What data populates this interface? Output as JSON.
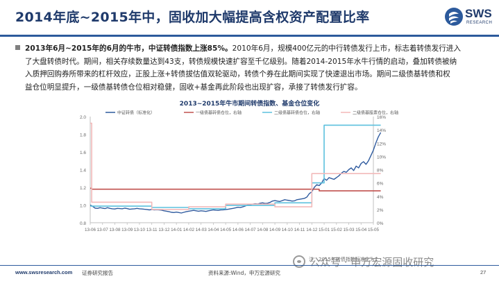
{
  "header": {
    "title": "2014年底~2015年中，固收加大幅提高含权资产配置比率",
    "logo_text": "SWS",
    "logo_sub": "RESEARCH"
  },
  "bullet": {
    "lines": [
      {
        "bold": "2013年6月~2015年的6月的牛市，中证转债指数上涨85%。",
        "text": "2010年6月，规模400亿元的中行转债发行上市，标志着转债发行进入"
      },
      {
        "bold": "",
        "text": "了大盘转债时代。期间，相关存续数量达到43支，转债规模快速扩容至千亿级别。随着2014-2015年水牛行情的启动，叠加转债被纳"
      },
      {
        "bold": "",
        "text": "入质押回购券所带来的杠杆效应，正股上涨+转债拔估值双轮驱动，转债个券在此期间实现了快速退出市场。期间二级债基转债和权"
      },
      {
        "bold": "",
        "text": "益仓位明显提升，一级债基转债仓位相对稳健，固收+基金再此阶段也出现扩容，承接了转债发行扩容。"
      }
    ]
  },
  "chart_data": {
    "type": "line",
    "title": "2013~2015年牛市期间转债指数、基金仓位变化",
    "x_ticks": [
      "13-06",
      "13-07",
      "13-08",
      "13-09",
      "13-10",
      "13-11",
      "13-12",
      "14-01",
      "14-02",
      "14-03",
      "14-04",
      "14-05",
      "14-06",
      "14-07",
      "14-08",
      "14-09",
      "14-10",
      "14-11",
      "14-12",
      "15-01",
      "15-02",
      "15-03",
      "15-04",
      "15-05"
    ],
    "left_axis": {
      "min": 0.8,
      "max": 2.0,
      "ticks": [
        "0.8",
        "1.0",
        "1.2",
        "1.4",
        "1.6",
        "1.8",
        "2.0"
      ]
    },
    "right_axis": {
      "min": 0,
      "max": 16,
      "ticks": [
        "0%",
        "2%",
        "4%",
        "6%",
        "8%",
        "10%",
        "12%",
        "14%",
        "16%"
      ]
    },
    "grid": false,
    "legend_position": "top",
    "series": [
      {
        "name": "中证转债（标准化）",
        "axis": "left",
        "color": "#2e5a9e",
        "points": [
          [
            0,
            1.0
          ],
          [
            0.2,
            0.985
          ],
          [
            0.4,
            0.965
          ],
          [
            0.6,
            0.962
          ],
          [
            0.8,
            0.97
          ],
          [
            1.0,
            0.965
          ],
          [
            1.2,
            0.96
          ],
          [
            1.4,
            0.97
          ],
          [
            1.6,
            0.962
          ],
          [
            1.8,
            0.958
          ],
          [
            2.0,
            0.955
          ],
          [
            2.2,
            0.962
          ],
          [
            2.4,
            0.96
          ],
          [
            2.6,
            0.958
          ],
          [
            2.8,
            0.965
          ],
          [
            3.0,
            0.96
          ],
          [
            3.2,
            0.952
          ],
          [
            3.4,
            0.955
          ],
          [
            3.6,
            0.958
          ],
          [
            3.8,
            0.962
          ],
          [
            4.0,
            0.958
          ],
          [
            4.2,
            0.955
          ],
          [
            4.4,
            0.952
          ],
          [
            4.6,
            0.95
          ],
          [
            4.8,
            0.945
          ],
          [
            5.0,
            0.948
          ],
          [
            5.2,
            0.944
          ],
          [
            5.4,
            0.947
          ],
          [
            5.6,
            0.944
          ],
          [
            5.8,
            0.942
          ],
          [
            6.0,
            0.935
          ],
          [
            6.2,
            0.93
          ],
          [
            6.4,
            0.925
          ],
          [
            6.6,
            0.918
          ],
          [
            6.8,
            0.915
          ],
          [
            7.0,
            0.92
          ],
          [
            7.2,
            0.915
          ],
          [
            7.4,
            0.91
          ],
          [
            7.6,
            0.918
          ],
          [
            7.8,
            0.925
          ],
          [
            8.0,
            0.93
          ],
          [
            8.2,
            0.935
          ],
          [
            8.4,
            0.94
          ],
          [
            8.6,
            0.935
          ],
          [
            8.8,
            0.93
          ],
          [
            9.0,
            0.935
          ],
          [
            9.2,
            0.932
          ],
          [
            9.4,
            0.928
          ],
          [
            9.6,
            0.935
          ],
          [
            9.8,
            0.94
          ],
          [
            10.0,
            0.945
          ],
          [
            10.2,
            0.942
          ],
          [
            10.4,
            0.94
          ],
          [
            10.6,
            0.944
          ],
          [
            10.8,
            0.946
          ],
          [
            11.0,
            0.948
          ],
          [
            11.2,
            0.952
          ],
          [
            11.4,
            0.958
          ],
          [
            11.6,
            0.962
          ],
          [
            11.8,
            0.968
          ],
          [
            12.0,
            0.975
          ],
          [
            12.2,
            0.972
          ],
          [
            12.4,
            0.98
          ],
          [
            12.6,
            0.99
          ],
          [
            12.8,
            1.0
          ],
          [
            13.0,
            1.005
          ],
          [
            13.2,
            1.01
          ],
          [
            13.4,
            1.015
          ],
          [
            13.6,
            1.012
          ],
          [
            13.8,
            1.02
          ],
          [
            14.0,
            1.025
          ],
          [
            14.2,
            1.018
          ],
          [
            14.4,
            1.02
          ],
          [
            14.6,
            1.03
          ],
          [
            14.8,
            1.045
          ],
          [
            15.0,
            1.05
          ],
          [
            15.2,
            1.045
          ],
          [
            15.4,
            1.04
          ],
          [
            15.6,
            1.05
          ],
          [
            15.8,
            1.06
          ],
          [
            16.0,
            1.055
          ],
          [
            16.2,
            1.05
          ],
          [
            16.4,
            1.045
          ],
          [
            16.6,
            1.048
          ],
          [
            16.8,
            1.06
          ],
          [
            17.0,
            1.065
          ],
          [
            17.2,
            1.07
          ],
          [
            17.4,
            1.075
          ],
          [
            17.6,
            1.09
          ],
          [
            17.8,
            1.13
          ],
          [
            18.0,
            1.15
          ],
          [
            18.2,
            1.2
          ],
          [
            18.4,
            1.23
          ],
          [
            18.6,
            1.22
          ],
          [
            18.8,
            1.25
          ],
          [
            19.0,
            1.3
          ],
          [
            19.2,
            1.28
          ],
          [
            19.4,
            1.31
          ],
          [
            19.6,
            1.3
          ],
          [
            19.8,
            1.29
          ],
          [
            20.0,
            1.31
          ],
          [
            20.2,
            1.33
          ],
          [
            20.4,
            1.36
          ],
          [
            20.6,
            1.38
          ],
          [
            20.8,
            1.37
          ],
          [
            21.0,
            1.4
          ],
          [
            21.2,
            1.42
          ],
          [
            21.4,
            1.39
          ],
          [
            21.6,
            1.44
          ],
          [
            21.8,
            1.42
          ],
          [
            22.0,
            1.47
          ],
          [
            22.2,
            1.49
          ],
          [
            22.4,
            1.46
          ],
          [
            22.6,
            1.5
          ],
          [
            22.8,
            1.56
          ],
          [
            23.0,
            1.62
          ],
          [
            23.2,
            1.7
          ],
          [
            23.4,
            1.77
          ],
          [
            23.6,
            1.82
          ]
        ]
      },
      {
        "name": "一级债基转债仓位，右轴",
        "axis": "right",
        "color": "#c0504d",
        "points": [
          [
            0,
            5.2
          ],
          [
            0.12,
            5.2
          ],
          [
            0.12,
            5.05
          ],
          [
            18.6,
            5.05
          ],
          [
            18.6,
            4.8
          ],
          [
            23.6,
            4.8
          ]
        ]
      },
      {
        "name": "二级债基转债仓位，右轴",
        "axis": "right",
        "color": "#5bc0de",
        "points": [
          [
            0,
            2.5
          ],
          [
            5.0,
            2.5
          ],
          [
            5.0,
            2.3
          ],
          [
            8.0,
            2.3
          ],
          [
            8.0,
            2.1
          ],
          [
            11.0,
            2.1
          ],
          [
            11.0,
            2.6
          ],
          [
            15.0,
            2.6
          ],
          [
            15.0,
            3.0
          ],
          [
            18.0,
            3.0
          ],
          [
            18.0,
            6.0
          ],
          [
            19.0,
            6.0
          ],
          [
            19.0,
            14.7
          ],
          [
            23.6,
            14.7
          ]
        ]
      },
      {
        "name": "二级债基股票仓位，右轴",
        "axis": "right",
        "color": "#f2b9b9",
        "points": [
          [
            0,
            15.0
          ],
          [
            0.12,
            15.0
          ],
          [
            0.12,
            3.1
          ],
          [
            5.0,
            3.1
          ],
          [
            5.0,
            2.0
          ],
          [
            8.0,
            2.0
          ],
          [
            8.0,
            2.4
          ],
          [
            11.0,
            2.4
          ],
          [
            11.0,
            2.8
          ],
          [
            15.0,
            2.8
          ],
          [
            15.0,
            2.4
          ],
          [
            18.0,
            2.4
          ],
          [
            18.0,
            7.4
          ],
          [
            23.6,
            7.4
          ]
        ]
      }
    ]
  },
  "note": "注：2015年转债指数标准化为1",
  "footer": {
    "url": "www.swsresearch.com",
    "tag": "证券研究报告",
    "source": "资料来源:Wind，申万宏源研究",
    "page": "27"
  },
  "watermark": {
    "text": "公众号 · 申万宏源固收研究"
  },
  "colors": {
    "brand": "#1f3a6b",
    "rule": "#2c5a9c"
  }
}
